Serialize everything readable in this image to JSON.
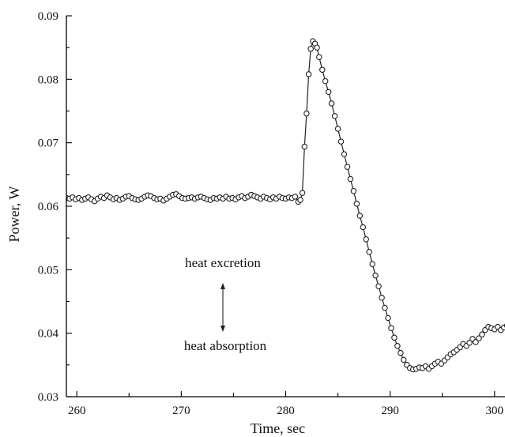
{
  "chart_data": {
    "type": "scatter",
    "title": "",
    "xlabel": "Time, sec",
    "ylabel": "Power, W",
    "xlim": [
      259,
      301
    ],
    "ylim": [
      0.03,
      0.09
    ],
    "xticks": [
      260,
      270,
      280,
      290,
      300
    ],
    "xtick_labels": [
      "260",
      "270",
      "280",
      "290",
      "300"
    ],
    "yticks": [
      0.03,
      0.04,
      0.05,
      0.06,
      0.07,
      0.08,
      0.09
    ],
    "ytick_labels": [
      "0.03",
      "0.04",
      "0.05",
      "0.06",
      "0.07",
      "0.08",
      "0.09"
    ],
    "grid": false,
    "annotations": [
      "heat excretion",
      "heat absorption"
    ],
    "series": [
      {
        "style": "open circles joined by a line",
        "points": [
          [
            259.0,
            0.0613
          ],
          [
            259.3,
            0.0612
          ],
          [
            259.6,
            0.0614
          ],
          [
            259.9,
            0.0611
          ],
          [
            260.2,
            0.0613
          ],
          [
            260.5,
            0.061
          ],
          [
            260.8,
            0.0612
          ],
          [
            261.1,
            0.0614
          ],
          [
            261.4,
            0.0611
          ],
          [
            261.7,
            0.0608
          ],
          [
            262.0,
            0.0612
          ],
          [
            262.3,
            0.0615
          ],
          [
            262.6,
            0.0613
          ],
          [
            262.9,
            0.0617
          ],
          [
            263.2,
            0.0614
          ],
          [
            263.5,
            0.0611
          ],
          [
            263.8,
            0.0613
          ],
          [
            264.1,
            0.061
          ],
          [
            264.4,
            0.0612
          ],
          [
            264.7,
            0.0615
          ],
          [
            265.0,
            0.0616
          ],
          [
            265.3,
            0.0613
          ],
          [
            265.6,
            0.0611
          ],
          [
            265.9,
            0.061
          ],
          [
            266.2,
            0.0612
          ],
          [
            266.5,
            0.0615
          ],
          [
            266.8,
            0.0617
          ],
          [
            267.1,
            0.0616
          ],
          [
            267.4,
            0.0613
          ],
          [
            267.7,
            0.0611
          ],
          [
            268.0,
            0.0612
          ],
          [
            268.3,
            0.0609
          ],
          [
            268.6,
            0.0612
          ],
          [
            268.9,
            0.0615
          ],
          [
            269.2,
            0.0618
          ],
          [
            269.5,
            0.0619
          ],
          [
            269.8,
            0.0616
          ],
          [
            270.1,
            0.0613
          ],
          [
            270.4,
            0.0612
          ],
          [
            270.7,
            0.0613
          ],
          [
            271.0,
            0.0614
          ],
          [
            271.3,
            0.0612
          ],
          [
            271.6,
            0.0614
          ],
          [
            271.9,
            0.0615
          ],
          [
            272.2,
            0.0613
          ],
          [
            272.5,
            0.0611
          ],
          [
            272.8,
            0.061
          ],
          [
            273.1,
            0.0613
          ],
          [
            273.4,
            0.0612
          ],
          [
            273.7,
            0.0614
          ],
          [
            274.0,
            0.0612
          ],
          [
            274.3,
            0.0615
          ],
          [
            274.6,
            0.0612
          ],
          [
            274.9,
            0.0613
          ],
          [
            275.2,
            0.0611
          ],
          [
            275.5,
            0.0614
          ],
          [
            275.8,
            0.0616
          ],
          [
            276.1,
            0.0613
          ],
          [
            276.4,
            0.0615
          ],
          [
            276.7,
            0.0618
          ],
          [
            277.0,
            0.0616
          ],
          [
            277.3,
            0.0614
          ],
          [
            277.6,
            0.0612
          ],
          [
            277.9,
            0.0615
          ],
          [
            278.2,
            0.0613
          ],
          [
            278.5,
            0.0611
          ],
          [
            278.8,
            0.0614
          ],
          [
            279.1,
            0.0612
          ],
          [
            279.4,
            0.0615
          ],
          [
            279.7,
            0.0613
          ],
          [
            280.0,
            0.0612
          ],
          [
            280.3,
            0.0614
          ],
          [
            280.6,
            0.0613
          ],
          [
            280.9,
            0.0615
          ],
          [
            281.2,
            0.0607
          ],
          [
            281.4,
            0.061
          ],
          [
            281.6,
            0.0621
          ],
          [
            281.8,
            0.0694
          ],
          [
            282.0,
            0.0746
          ],
          [
            282.2,
            0.0808
          ],
          [
            282.4,
            0.0848
          ],
          [
            282.6,
            0.086
          ],
          [
            282.8,
            0.0856
          ],
          [
            283.0,
            0.085
          ],
          [
            283.2,
            0.0835
          ],
          [
            283.5,
            0.0815
          ],
          [
            283.8,
            0.0797
          ],
          [
            284.1,
            0.078
          ],
          [
            284.4,
            0.0762
          ],
          [
            284.7,
            0.0742
          ],
          [
            285.0,
            0.0722
          ],
          [
            285.3,
            0.0702
          ],
          [
            285.6,
            0.0682
          ],
          [
            285.9,
            0.0662
          ],
          [
            286.2,
            0.0643
          ],
          [
            286.5,
            0.0624
          ],
          [
            286.8,
            0.0604
          ],
          [
            287.1,
            0.0585
          ],
          [
            287.4,
            0.0567
          ],
          [
            287.7,
            0.0548
          ],
          [
            288.0,
            0.0528
          ],
          [
            288.3,
            0.0509
          ],
          [
            288.6,
            0.0491
          ],
          [
            288.9,
            0.0474
          ],
          [
            289.2,
            0.0456
          ],
          [
            289.5,
            0.044
          ],
          [
            289.8,
            0.0424
          ],
          [
            290.1,
            0.0408
          ],
          [
            290.4,
            0.0393
          ],
          [
            290.7,
            0.038
          ],
          [
            291.0,
            0.0369
          ],
          [
            291.3,
            0.0358
          ],
          [
            291.6,
            0.035
          ],
          [
            291.9,
            0.0345
          ],
          [
            292.2,
            0.0343
          ],
          [
            292.5,
            0.0344
          ],
          [
            292.8,
            0.0346
          ],
          [
            293.1,
            0.0345
          ],
          [
            293.4,
            0.0348
          ],
          [
            293.7,
            0.0344
          ],
          [
            294.0,
            0.0348
          ],
          [
            294.3,
            0.0352
          ],
          [
            294.6,
            0.0355
          ],
          [
            294.9,
            0.0352
          ],
          [
            295.2,
            0.0357
          ],
          [
            295.5,
            0.0362
          ],
          [
            295.8,
            0.0367
          ],
          [
            296.1,
            0.037
          ],
          [
            296.4,
            0.0374
          ],
          [
            296.7,
            0.0378
          ],
          [
            297.0,
            0.0383
          ],
          [
            297.3,
            0.038
          ],
          [
            297.6,
            0.0385
          ],
          [
            297.9,
            0.0391
          ],
          [
            298.2,
            0.0386
          ],
          [
            298.5,
            0.0392
          ],
          [
            298.8,
            0.0398
          ],
          [
            299.1,
            0.0405
          ],
          [
            299.4,
            0.041
          ],
          [
            299.7,
            0.0408
          ],
          [
            300.0,
            0.0406
          ],
          [
            300.3,
            0.041
          ],
          [
            300.6,
            0.0405
          ],
          [
            300.9,
            0.0409
          ],
          [
            301.2,
            0.0412
          ],
          [
            301.5,
            0.0408
          ],
          [
            301.8,
            0.0411
          ],
          [
            302.1,
            0.0413
          ],
          [
            302.4,
            0.041
          ],
          [
            302.7,
            0.0414
          ],
          [
            303.0,
            0.0415
          ],
          [
            303.3,
            0.0412
          ],
          [
            303.6,
            0.0416
          ]
        ]
      }
    ]
  }
}
